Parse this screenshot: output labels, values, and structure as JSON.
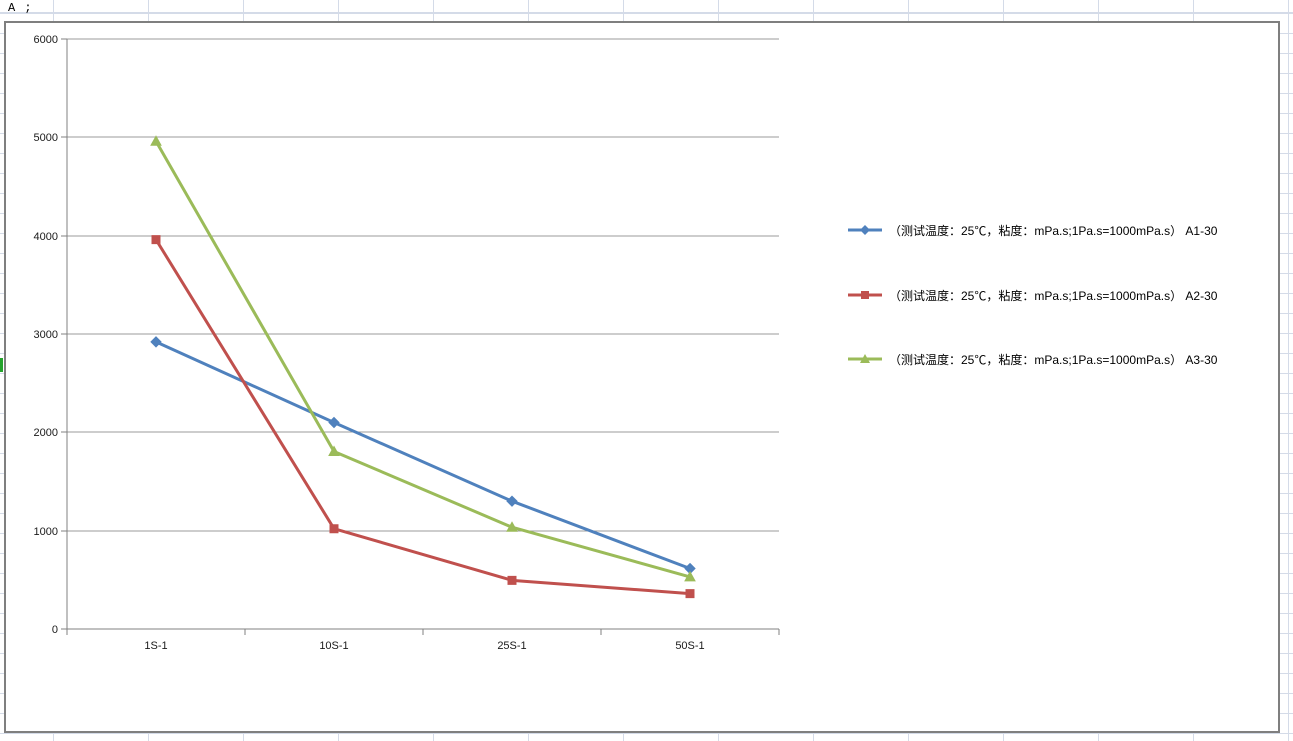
{
  "spreadsheet": {
    "top_cell_text": "A ;"
  },
  "chart_data": {
    "type": "line",
    "title": "",
    "xlabel": "",
    "ylabel": "",
    "categories": [
      "1S-1",
      "10S-1",
      "25S-1",
      "50S-1"
    ],
    "series": [
      {
        "name": "（测试温度：25℃，粘度：mPa.s;1Pa.s=1000mPa.s） A1-30",
        "marker": "diamond",
        "color": "#4F81BD",
        "values": [
          2920,
          2100,
          1300,
          615
        ]
      },
      {
        "name": "（测试温度：25℃，粘度：mPa.s;1Pa.s=1000mPa.s） A2-30",
        "marker": "square",
        "color": "#C0504D",
        "values": [
          3960,
          1020,
          495,
          360
        ]
      },
      {
        "name": "（测试温度：25℃，粘度：mPa.s;1Pa.s=1000mPa.s） A3-30",
        "marker": "triangle",
        "color": "#9BBB59",
        "values": [
          4960,
          1805,
          1035,
          530
        ]
      }
    ],
    "ylim": [
      0,
      6000
    ],
    "ytick_interval": 1000,
    "ytick_labels": [
      "0",
      "1000",
      "2000",
      "3000",
      "4000",
      "5000",
      "6000"
    ],
    "grid": true,
    "legend_position": "right"
  },
  "style": {
    "gridline_color": "#9b9b9b",
    "axis_color": "#808080",
    "chart_border_color": "#7f7f7f",
    "sheet_gridline_color": "#d4dbe8",
    "selection_marker_color": "#24a32c",
    "axis_label_color": "#1a1a1a"
  }
}
